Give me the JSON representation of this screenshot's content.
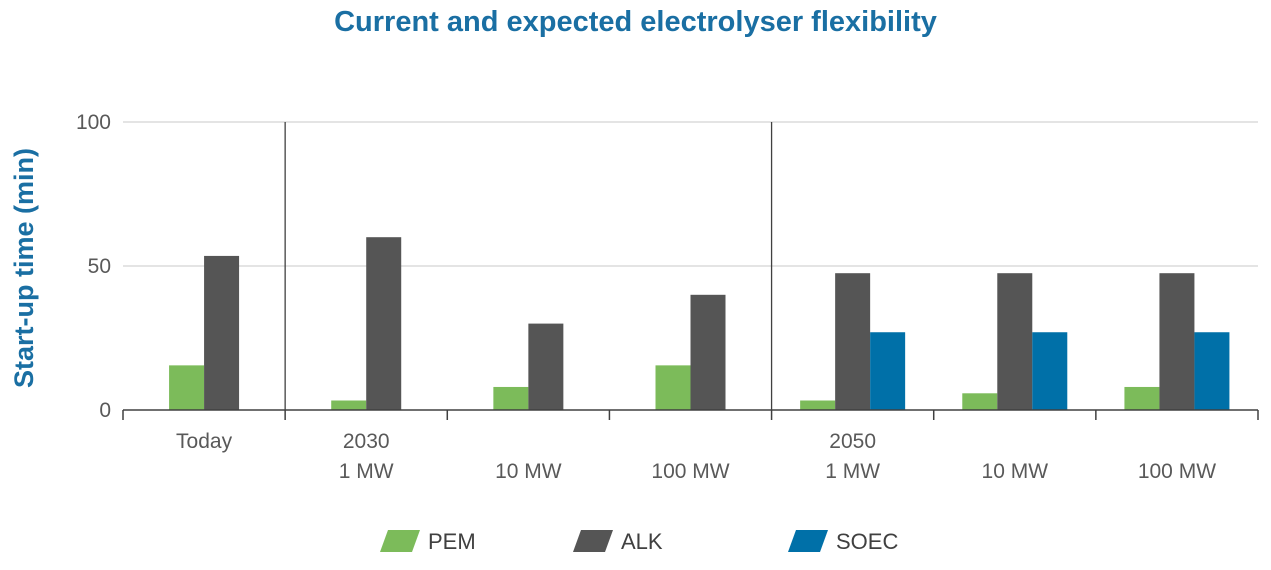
{
  "chart_data": {
    "type": "bar",
    "title": "Current and expected electrolyser flexibility",
    "ylabel": "Start-up time (min)",
    "xlabel": "",
    "ylim": [
      0,
      100
    ],
    "yticks": [
      0,
      50,
      100
    ],
    "grid": true,
    "legend_position": "bottom",
    "categories": [
      [
        "Today"
      ],
      [
        "2030",
        "1 MW"
      ],
      [
        "10 MW"
      ],
      [
        "100 MW"
      ],
      [
        "2050",
        "1 MW"
      ],
      [
        "10 MW"
      ],
      [
        "100 MW"
      ]
    ],
    "group_separators_after": [
      0,
      3
    ],
    "series": [
      {
        "name": "PEM",
        "color": "#7cbb5a",
        "values": [
          15.5,
          3.3,
          8,
          15.5,
          3.3,
          5.8,
          8
        ]
      },
      {
        "name": "ALK",
        "color": "#555555",
        "values": [
          53.5,
          60,
          30,
          40,
          47.5,
          47.5,
          47.5
        ]
      },
      {
        "name": "SOEC",
        "color": "#0070a8",
        "values": [
          null,
          null,
          null,
          null,
          27,
          27,
          27
        ]
      }
    ]
  }
}
